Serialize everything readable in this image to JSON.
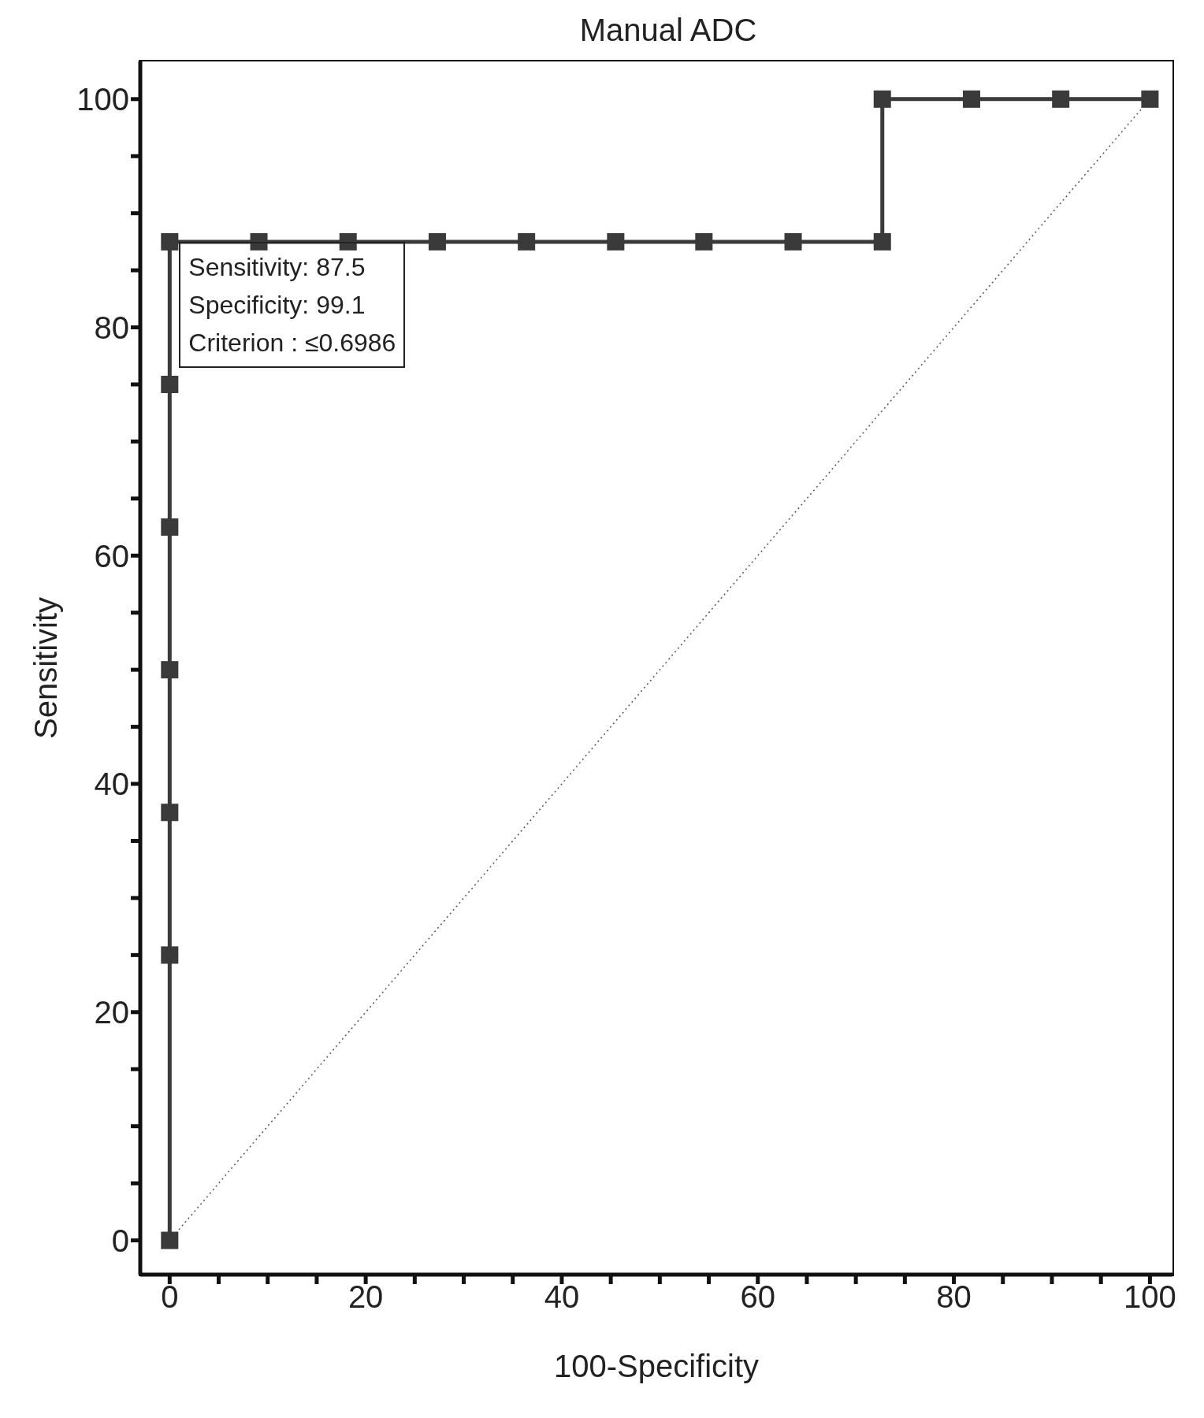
{
  "chart_data": {
    "type": "step",
    "title": "Manual ADC",
    "xlabel": "100-Specificity",
    "ylabel": "Sensitivity",
    "annotations": [
      "Sensitivity: 87.5",
      "Specificity: 99.1",
      "Criterion : ≤0.6986"
    ],
    "xlim": [
      -3,
      102.3
    ],
    "ylim": [
      -3,
      103.3
    ],
    "xticks": [
      0,
      {
        "value": 5,
        "label": null
      },
      {
        "value": 10,
        "label": null
      },
      {
        "value": 15,
        "label": null
      },
      20,
      {
        "value": 25,
        "label": null
      },
      {
        "value": 30,
        "label": null
      },
      {
        "value": 35,
        "label": null
      },
      40,
      {
        "value": 45,
        "label": null
      },
      {
        "value": 50,
        "label": null
      },
      {
        "value": 55,
        "label": null
      },
      60,
      {
        "value": 65,
        "label": null
      },
      {
        "value": 70,
        "label": null
      },
      {
        "value": 75,
        "label": null
      },
      80,
      {
        "value": 85,
        "label": null
      },
      {
        "value": 90,
        "label": null
      },
      {
        "value": 95,
        "label": null
      },
      100
    ],
    "yticks": [
      0,
      {
        "value": 5,
        "label": null
      },
      {
        "value": 10,
        "label": null
      },
      {
        "value": 15,
        "label": null
      },
      20,
      {
        "value": 25,
        "label": null
      },
      {
        "value": 30,
        "label": null
      },
      {
        "value": 35,
        "label": null
      },
      40,
      {
        "value": 45,
        "label": null
      },
      {
        "value": 50,
        "label": null
      },
      {
        "value": 55,
        "label": null
      },
      60,
      {
        "value": 65,
        "label": null
      },
      {
        "value": 70,
        "label": null
      },
      {
        "value": 75,
        "label": null
      },
      80,
      {
        "value": 85,
        "label": null
      },
      {
        "value": 90,
        "label": null
      },
      {
        "value": 95,
        "label": null
      },
      100
    ],
    "series": [
      {
        "color": "#3a3a3a",
        "marker": "square",
        "line_style": "solid",
        "x": [
          0,
          0,
          0,
          0,
          0,
          0,
          0,
          9.1,
          18.2,
          27.3,
          36.4,
          45.5,
          54.5,
          63.6,
          72.7,
          72.7,
          81.8,
          90.9,
          100
        ],
        "values": [
          0,
          25,
          37.5,
          50,
          62.5,
          75,
          87.5,
          87.5,
          87.5,
          87.5,
          87.5,
          87.5,
          87.5,
          87.5,
          87.5,
          100,
          100,
          100,
          100
        ]
      },
      {
        "type": "line",
        "color": "#555555",
        "marker": "none",
        "line_style": "dotted",
        "x": [
          0,
          100
        ],
        "values": [
          0,
          100
        ]
      }
    ]
  }
}
